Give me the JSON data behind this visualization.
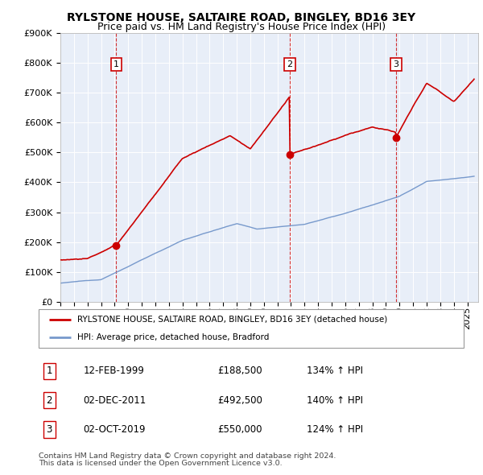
{
  "title": "RYLSTONE HOUSE, SALTAIRE ROAD, BINGLEY, BD16 3EY",
  "subtitle": "Price paid vs. HM Land Registry's House Price Index (HPI)",
  "ylim": [
    0,
    900000
  ],
  "xlim_start": 1995.0,
  "xlim_end": 2025.8,
  "yticks": [
    0,
    100000,
    200000,
    300000,
    400000,
    500000,
    600000,
    700000,
    800000,
    900000
  ],
  "ytick_labels": [
    "£0",
    "£100K",
    "£200K",
    "£300K",
    "£400K",
    "£500K",
    "£600K",
    "£700K",
    "£800K",
    "£900K"
  ],
  "sale_points": [
    {
      "number": 1,
      "date": "12-FEB-1999",
      "price": 188500,
      "pct": "134%",
      "x": 1999.12
    },
    {
      "number": 2,
      "date": "02-DEC-2011",
      "price": 492500,
      "pct": "140%",
      "x": 2011.92
    },
    {
      "number": 3,
      "date": "02-OCT-2019",
      "price": 550000,
      "pct": "124%",
      "x": 2019.75
    }
  ],
  "sale_vline_color": "#cc0000",
  "property_line_color": "#cc0000",
  "hpi_line_color": "#7799cc",
  "legend_property_label": "RYLSTONE HOUSE, SALTAIRE ROAD, BINGLEY, BD16 3EY (detached house)",
  "legend_hpi_label": "HPI: Average price, detached house, Bradford",
  "footer1": "Contains HM Land Registry data © Crown copyright and database right 2024.",
  "footer2": "This data is licensed under the Open Government Licence v3.0.",
  "chart_bg_color": "#e8eef8",
  "grid_color": "#ffffff",
  "title_fontsize": 10,
  "subtitle_fontsize": 9,
  "tick_fontsize": 8
}
